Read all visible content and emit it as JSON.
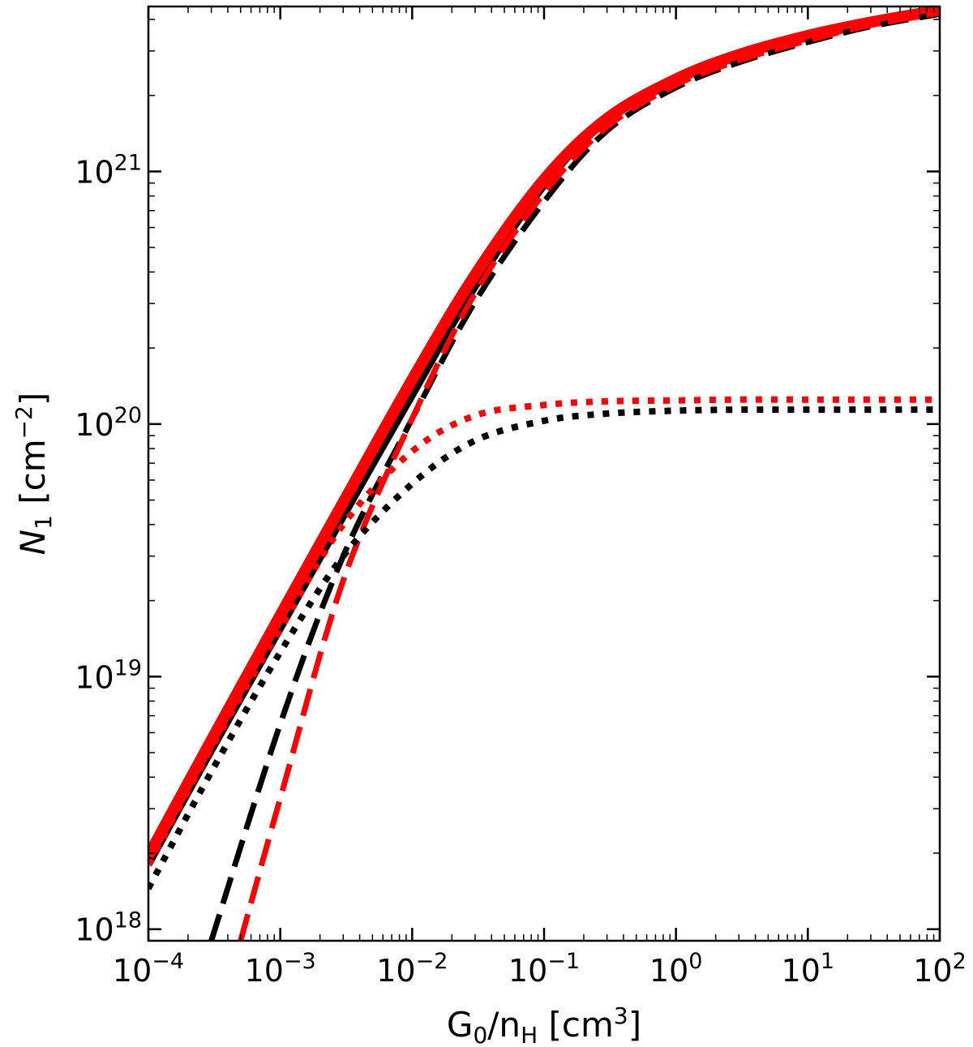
{
  "chart_data": {
    "type": "line",
    "title": "",
    "xlabel": "G0/nH [cm3]",
    "ylabel": "N1 [cm-2]",
    "xscale": "log",
    "yscale": "log",
    "xlim": [
      0.0001,
      100
    ],
    "ylim": [
      9e+17,
      4.5e+21
    ],
    "grid": false,
    "legend": "none",
    "x_ticks": [
      {
        "value": 0.0001,
        "base": "10",
        "exp": "−4"
      },
      {
        "value": 0.001,
        "base": "10",
        "exp": "−3"
      },
      {
        "value": 0.01,
        "base": "10",
        "exp": "−2"
      },
      {
        "value": 0.1,
        "base": "10",
        "exp": "−1"
      },
      {
        "value": 1,
        "base": "10",
        "exp": "0"
      },
      {
        "value": 10,
        "base": "10",
        "exp": "1"
      },
      {
        "value": 100,
        "base": "10",
        "exp": "2"
      }
    ],
    "y_ticks": [
      {
        "value": 1e+18,
        "base": "10",
        "exp": "18"
      },
      {
        "value": 1e+19,
        "base": "10",
        "exp": "19"
      },
      {
        "value": 1e+20,
        "base": "10",
        "exp": "20"
      },
      {
        "value": 1e+21,
        "base": "10",
        "exp": "21"
      }
    ],
    "series": [
      {
        "color": "#000000",
        "style": "solid",
        "x": [
          0.0001,
          0.0003,
          0.001,
          0.003,
          0.01,
          0.03,
          0.1,
          0.3,
          1,
          3,
          10,
          30,
          100
        ],
        "y": [
          1.8e+18,
          5.1e+18,
          1.55e+19,
          4.3e+19,
          1.3e+20,
          3.5e+20,
          8.8e+20,
          1.6e+21,
          2.3e+21,
          2.85e+21,
          3.4e+21,
          3.85e+21,
          4.3e+21
        ]
      },
      {
        "color": "#ff0000",
        "style": "solid",
        "x": [
          0.0001,
          0.0003,
          0.001,
          0.003,
          0.01,
          0.03,
          0.1,
          0.3,
          1,
          3,
          10,
          30,
          100
        ],
        "y": [
          1.95e+18,
          5.6e+18,
          1.75e+19,
          4.9e+19,
          1.5e+20,
          3.9e+20,
          9.3e+20,
          1.62e+21,
          2.32e+21,
          2.9e+21,
          3.45e+21,
          3.9e+21,
          4.35e+21
        ]
      },
      {
        "color": "#000000",
        "style": "dashed",
        "x": [
          0.0003,
          0.001,
          0.003,
          0.01,
          0.03,
          0.1,
          0.3,
          1,
          3,
          10,
          30,
          100
        ],
        "y": [
          9e+17,
          6.5e+18,
          3e+19,
          1.05e+20,
          3.05e+20,
          7.6e+20,
          1.45e+21,
          2.15e+21,
          2.7e+21,
          3.25e+21,
          3.75e+21,
          4.2e+21
        ]
      },
      {
        "color": "#ff0000",
        "style": "dashed",
        "x": [
          0.0005,
          0.001,
          0.003,
          0.01,
          0.03,
          0.1,
          0.3,
          1,
          3,
          10,
          30,
          100
        ],
        "y": [
          9e+17,
          3.3e+18,
          2.4e+19,
          1.05e+20,
          3.3e+20,
          8.2e+20,
          1.5e+21,
          2.2e+21,
          2.75e+21,
          3.3e+21,
          3.8e+21,
          4.25e+21
        ]
      },
      {
        "color": "#000000",
        "style": "dotted",
        "x": [
          0.0001,
          0.0003,
          0.001,
          0.003,
          0.01,
          0.03,
          0.1,
          0.3,
          1,
          3,
          10,
          30,
          100
        ],
        "y": [
          1.45e+18,
          4.2e+18,
          1.25e+19,
          3e+19,
          5.8e+19,
          8.6e+19,
          1.03e+20,
          1.1e+20,
          1.13e+20,
          1.14e+20,
          1.14e+20,
          1.14e+20,
          1.14e+20
        ]
      },
      {
        "color": "#ff0000",
        "style": "dotted",
        "x": [
          0.0001,
          0.0003,
          0.001,
          0.003,
          0.01,
          0.03,
          0.1,
          0.3,
          1,
          3,
          10,
          30,
          100
        ],
        "y": [
          1.8e+18,
          5.2e+18,
          1.55e+19,
          4e+19,
          7.8e+19,
          1.08e+20,
          1.19e+20,
          1.23e+20,
          1.24e+20,
          1.25e+20,
          1.25e+20,
          1.25e+20,
          1.25e+20
        ]
      }
    ]
  }
}
